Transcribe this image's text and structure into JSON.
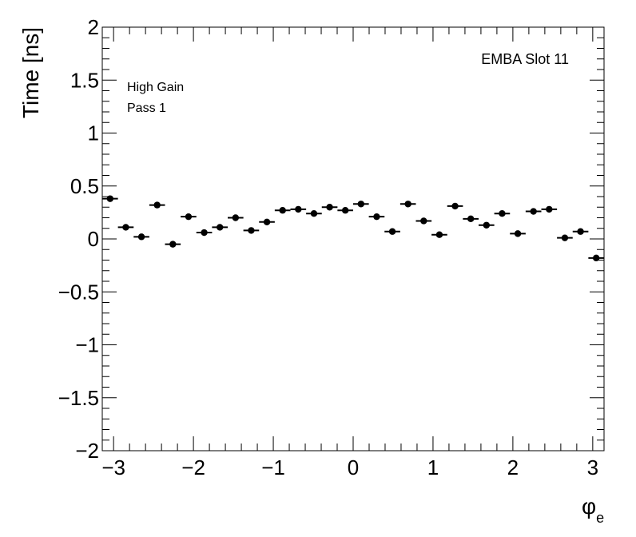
{
  "chart_data": {
    "type": "scatter",
    "title": "",
    "ylabel": "Time [ns]",
    "xlabel_symbol": "φ",
    "xlabel_sub": "e",
    "xlim": [
      -3.1416,
      3.1416
    ],
    "ylim": [
      -2,
      2
    ],
    "x_ticks": [
      -3,
      -2,
      -1,
      0,
      1,
      2,
      3
    ],
    "x_tick_labels": [
      "−3",
      "−2",
      "−1",
      "0",
      "1",
      "2",
      "3"
    ],
    "y_ticks": [
      -2,
      -1.5,
      -1,
      -0.5,
      0,
      0.5,
      1,
      1.5,
      2
    ],
    "y_tick_labels": [
      "−2",
      "−1.5",
      "−1",
      "−0.5",
      "0",
      "0.5",
      "1",
      "1.5",
      "2"
    ],
    "bin_half_width": 0.0982,
    "grid": false,
    "annotations": {
      "top_right": "EMBA Slot 11",
      "line1": "High Gain",
      "line2": "Pass 1"
    },
    "series": [
      {
        "x": [
          -3.0434,
          -2.8471,
          -2.6507,
          -2.4544,
          -2.258,
          -2.0617,
          -1.8653,
          -1.669,
          -1.4726,
          -1.2763,
          -1.0799,
          -0.8836,
          -0.6872,
          -0.4909,
          -0.2945,
          -0.0982,
          0.0982,
          0.2945,
          0.4909,
          0.6872,
          0.8836,
          1.0799,
          1.2763,
          1.4726,
          1.669,
          1.8653,
          2.0617,
          2.258,
          2.4544,
          2.6507,
          2.8471,
          3.0434
        ],
        "y": [
          0.38,
          0.11,
          0.02,
          0.32,
          -0.05,
          0.21,
          0.06,
          0.11,
          0.2,
          0.08,
          0.16,
          0.27,
          0.28,
          0.24,
          0.3,
          0.27,
          0.33,
          0.21,
          0.07,
          0.33,
          0.17,
          0.04,
          0.31,
          0.19,
          0.13,
          0.24,
          0.05,
          0.26,
          0.28,
          0.01,
          0.07,
          -0.18
        ]
      }
    ]
  }
}
